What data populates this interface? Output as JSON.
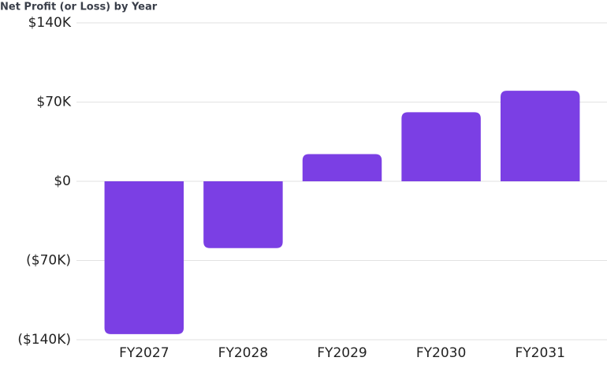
{
  "chart_data": {
    "type": "bar",
    "title": "Net Profit (or Loss) by Year",
    "categories": [
      "FY2027",
      "FY2028",
      "FY2029",
      "FY2030",
      "FY2031"
    ],
    "values": [
      -135000,
      -59000,
      24000,
      61000,
      80000
    ],
    "color": "#7b3fe4",
    "ylim": [
      -140000,
      140000
    ],
    "yticks": [
      {
        "value": -140000,
        "label": "($140K)"
      },
      {
        "value": -70000,
        "label": "($70K)"
      },
      {
        "value": 0,
        "label": "$0"
      },
      {
        "value": 70000,
        "label": "$70K"
      },
      {
        "value": 140000,
        "label": "$140K"
      }
    ],
    "grid": true
  }
}
